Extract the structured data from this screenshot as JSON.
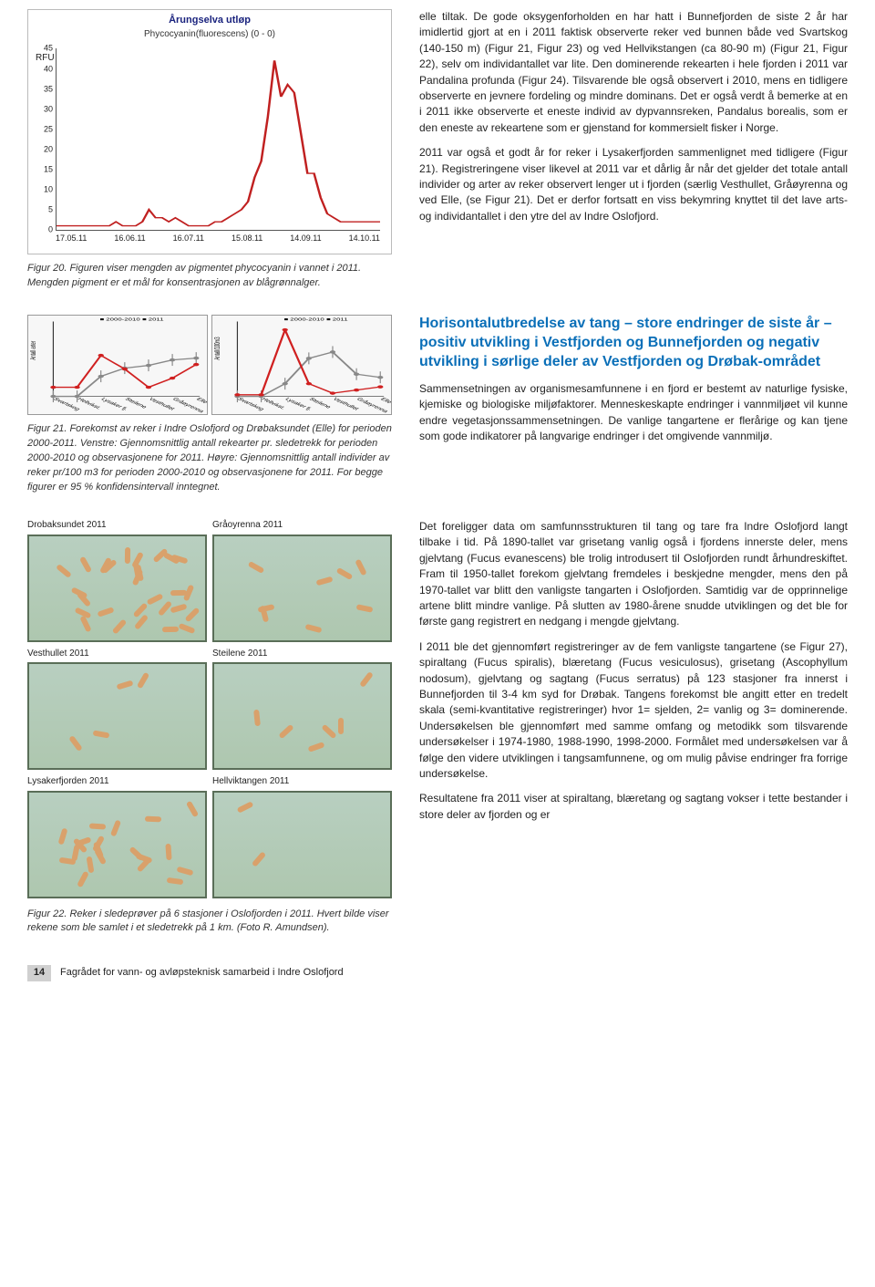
{
  "chart1": {
    "title": "Årungselva utløp",
    "subtitle": "Phycocyanin(fluorescens) (0 - 0)",
    "ylabel": "RFU",
    "yticks": [
      0,
      5,
      10,
      15,
      20,
      25,
      30,
      35,
      40,
      45
    ],
    "xticks": [
      "17.05.11",
      "16.06.11",
      "16.07.11",
      "15.08.11",
      "14.09.11",
      "14.10.11"
    ],
    "line_color": "#c02020",
    "series": [
      1,
      1,
      1,
      1,
      1,
      1,
      1,
      1,
      1,
      2,
      1,
      1,
      1,
      2,
      5,
      3,
      3,
      2,
      3,
      2,
      1,
      1,
      1,
      1,
      2,
      2,
      3,
      4,
      5,
      7,
      13,
      17,
      28,
      42,
      33,
      36,
      34,
      24,
      14,
      14,
      8,
      4,
      3,
      2,
      2,
      2,
      2,
      2,
      2,
      2
    ]
  },
  "caption20": "Figur 20. Figuren viser mengden av pigmentet phycocyanin i vannet i 2011. Mengden pigment er et mål for konsentrasjonen av blågrønnalger.",
  "para1": "elle tiltak. De gode oksygenforholden en har hatt i Bunnefjorden de siste 2 år har imidlertid gjort at en i 2011 faktisk observerte reker ved bunnen både ved Svartskog (140-150 m) (Figur 21, Figur 23) og ved Hellvikstangen (ca 80-90 m) (Figur 21, Figur 22), selv om individantallet var lite. Den dominerende rekearten i hele fjorden i 2011 var Pandalina profunda (Figur 24). Tilsvarende ble også observert i 2010, mens en tidligere observerte en jevnere fordeling og mindre dominans. Det er også verdt å bemerke at en i 2011 ikke observerte et eneste individ av dypvannsreken, Pandalus borealis, som er den eneste av rekeartene som er gjenstand for kommersielt fisker i Norge.",
  "para2": "2011 var også et godt år for reker i Lysakerfjorden sammenlignet med tidligere (Figur 21). Registreringene viser likevel at 2011 var et dårlig år når det gjelder det totale antall individer og arter av reker observert lenger ut i fjorden (særlig Vesthullet, Gråøyrenna og ved Elle, (se Figur 21). Det er derfor fortsatt en viss bekymring knyttet til det lave arts- og individantallet i den ytre del av Indre Oslofjord.",
  "mini_legend": {
    "a": "2000-2010",
    "b": "2011",
    "a_color": "#888",
    "b_color": "#d02020"
  },
  "mini_left": {
    "ylim": [
      0,
      8
    ],
    "categories": [
      "Svartskog",
      "Hellvikst.",
      "Lysaker fj.",
      "Steilene",
      "Vesthullet",
      "Gråøyrenna",
      "Elle"
    ],
    "series_a": [
      0,
      0,
      2.2,
      3.1,
      3.4,
      4.0,
      4.2
    ],
    "series_b": [
      1,
      1,
      4.5,
      3,
      1,
      2,
      3.5
    ],
    "ylabel": "Antall arter"
  },
  "mini_right": {
    "ylim": [
      0,
      230
    ],
    "yticks": [
      0,
      50,
      100,
      150,
      200,
      230
    ],
    "categories": [
      "Svartskog",
      "Hellvikst.",
      "Lysaker fj.",
      "Steilene",
      "Vesthullet",
      "Gråøyrenna",
      "Elle"
    ],
    "series_a": [
      0,
      0,
      40,
      120,
      140,
      70,
      60
    ],
    "series_b": [
      5,
      5,
      210,
      40,
      10,
      20,
      30
    ],
    "ylabel": "Antall/100m3"
  },
  "caption21": "Figur 21. Forekomst av reker i Indre Oslofjord og Drøbaksundet (Elle) for perioden 2000-2011. Venstre: Gjennomsnittlig antall rekearter pr. sledetrekk for perioden 2000-2010 og observasjonene for 2011. Høyre: Gjennomsnittlig antall individer av reker pr/100 m3 for perioden 2000-2010 og observasjonene for 2011. For begge figurer er 95 % konfidensintervall inntegnet.",
  "heading": "Horisontalutbredelse av tang – store endringer de siste år – positiv utvikling i Vestfjorden og Bunnefjorden og negativ utvikling i sørlige deler av Vestfjorden og Drøbak-området",
  "para3": "Sammensetningen av organismesamfunnene i en fjord er bestemt av naturlige fysiske, kjemiske og biologiske miljøfaktorer. Menneskeskapte endringer i vannmiljøet vil kunne endre vegetasjonssammensetningen. De vanlige tangartene er flerårige og kan tjene som gode indikatorer på langvarige endringer i det omgivende vannmiljø.",
  "photos": [
    {
      "label": "Drobaksundet 2011"
    },
    {
      "label": "Gråoyrenna 2011"
    },
    {
      "label": "Vesthullet 2011"
    },
    {
      "label": "Steilene 2011"
    },
    {
      "label": "Lysakerfjorden 2011"
    },
    {
      "label": "Hellviktangen 2011"
    }
  ],
  "caption22": "Figur 22. Reker i sledeprøver på 6 stasjoner i Oslofjorden i 2011. Hvert bilde viser rekene som ble samlet i et sledetrekk på 1 km. (Foto R. Amundsen).",
  "para4": "Det foreligger data om samfunnsstrukturen til tang og tare fra Indre Oslofjord langt tilbake i tid. På 1890-tallet var grisetang vanlig også i fjordens innerste deler, mens gjelvtang (Fucus evanescens) ble trolig introdusert til Oslofjorden rundt århundreskiftet. Fram til 1950-tallet forekom gjelvtang fremdeles i beskjedne mengder, mens den på 1970-tallet var blitt den vanligste tangarten i Oslofjorden. Samtidig var de opprinnelige artene blitt mindre vanlige. På slutten av 1980-årene snudde utviklingen og det ble for første gang registrert en nedgang i mengde gjelvtang.",
  "para5": "I 2011 ble det gjennomført registreringer av de fem vanligste tangartene (se Figur 27), spiraltang (Fucus spiralis), blæretang (Fucus vesiculosus), grisetang (Ascophyllum nodosum), gjelvtang og sagtang (Fucus serratus) på 123 stasjoner fra innerst i Bunnefjorden til 3-4 km syd for Drøbak. Tangens forekomst ble angitt etter en tredelt skala (semi-kvantitative registreringer) hvor 1= sjelden, 2= vanlig og 3= dominerende. Undersøkelsen ble gjennomført med samme omfang og metodikk som tilsvarende undersøkelser i 1974-1980, 1988-1990, 1998-2000. Formålet med undersøkelsen var å følge den videre utviklingen i tangsamfunnene, og om mulig påvise endringer fra forrige undersøkelse.",
  "para6": "Resultatene fra 2011 viser at spiraltang, blæretang og sagtang vokser i tette bestander i store deler av fjorden og er",
  "footer": {
    "page": "14",
    "text": "Fagrådet for vann- og avløpsteknisk samarbeid i Indre Oslofjord"
  }
}
